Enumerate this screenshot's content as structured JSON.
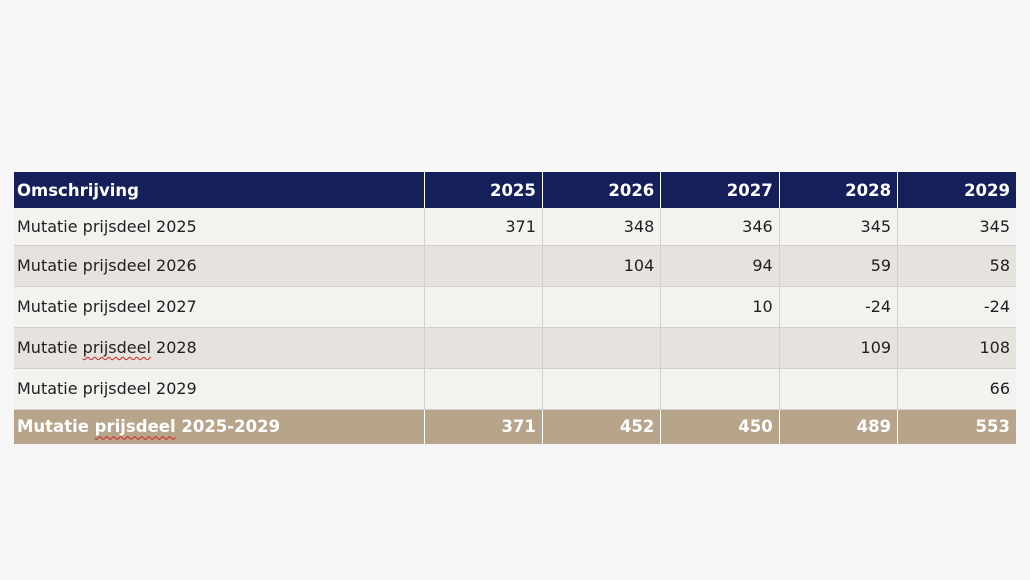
{
  "table": {
    "headers": [
      "Omschrijving",
      "2025",
      "2026",
      "2027",
      "2028",
      "2029"
    ],
    "rows": [
      {
        "label": "Mutatie prijsdeel 2025",
        "values": [
          "371",
          "348",
          "346",
          "345",
          "345"
        ]
      },
      {
        "label": "Mutatie prijsdeel 2026",
        "values": [
          "",
          "104",
          "94",
          "59",
          "58"
        ]
      },
      {
        "label": "Mutatie prijsdeel 2027",
        "values": [
          "",
          "",
          "10",
          "-24",
          "-24"
        ]
      },
      {
        "label": "Mutatie prijsdeel 2028",
        "values": [
          "",
          "",
          "",
          "109",
          "108"
        ]
      },
      {
        "label": "Mutatie prijsdeel 2029",
        "values": [
          "",
          "",
          "",
          "",
          "66"
        ]
      }
    ],
    "total": {
      "label": "Mutatie prijsdeel 2025-2029",
      "values": [
        "371",
        "452",
        "450",
        "489",
        "553"
      ]
    }
  },
  "colors": {
    "header_bg": "#15205a",
    "row_light": "#f3f2ef",
    "row_dark": "#e6e3de",
    "total_bg": "#b8a48a",
    "spellcheck_underline": "#d62020"
  }
}
